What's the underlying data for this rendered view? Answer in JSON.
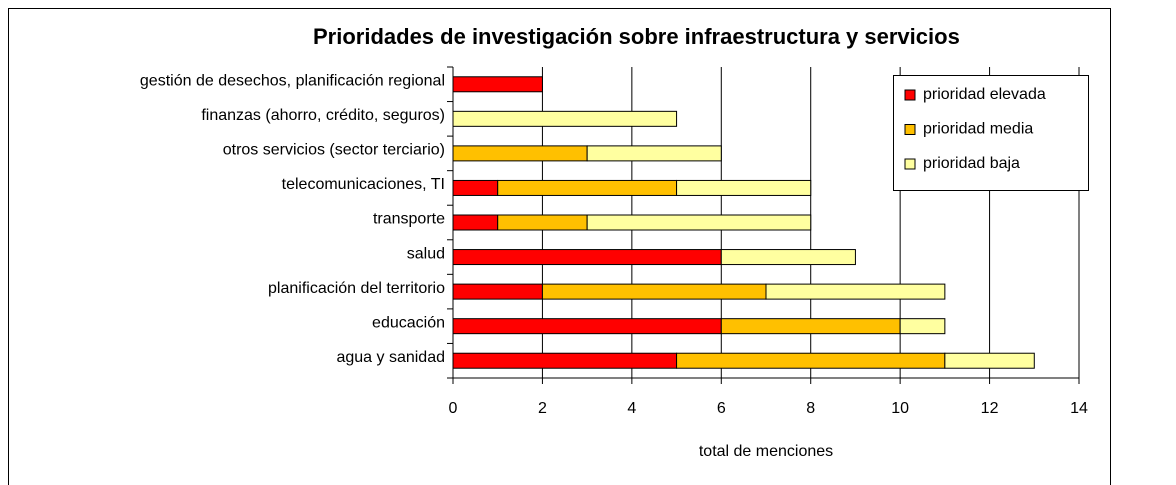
{
  "chart_data": {
    "type": "stacked_barh",
    "title": "Prioridades de investigación sobre infraestructura y servicios",
    "xlabel": "total de menciones",
    "categories": [
      "gestión de desechos, planificación regional",
      "finanzas (ahorro, crédito, seguros)",
      "otros servicios (sector terciario)",
      "telecomunicaciones, TI",
      "transporte",
      "salud",
      "planificación del territorio",
      "educación",
      "agua y sanidad"
    ],
    "series": [
      {
        "name": "prioridad elevada",
        "color": "#ff0000",
        "values": [
          2,
          0,
          0,
          1,
          1,
          6,
          2,
          6,
          5
        ]
      },
      {
        "name": "prioridad media",
        "color": "#ffc000",
        "values": [
          0,
          0,
          3,
          4,
          2,
          0,
          5,
          4,
          6
        ]
      },
      {
        "name": "prioridad baja",
        "color": "#ffffa0",
        "values": [
          0,
          5,
          3,
          3,
          5,
          3,
          4,
          1,
          2
        ]
      }
    ],
    "xlim": [
      0,
      14
    ],
    "xticks": [
      0,
      2,
      4,
      6,
      8,
      10,
      12,
      14
    ],
    "grid": true,
    "legend": "upper right"
  }
}
